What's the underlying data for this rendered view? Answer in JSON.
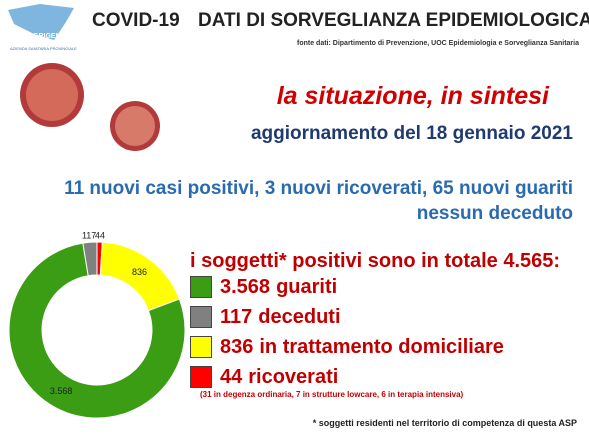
{
  "logo": {
    "name": "ASP AGRIGENTO",
    "subtitle": "AZIENDA SANITARIA PROVINCIALE"
  },
  "header": {
    "title_left": "COVID-19",
    "title_right": "DATI DI SORVEGLIANZA EPIDEMIOLOGICA",
    "source": "fonte dati: Dipartimento di Prevenzione, UOC Epidemiologia e Sorveglianza Sanitaria"
  },
  "headline": "la situazione, in sintesi",
  "update": "aggiornamento del 18 gennaio 2021",
  "summary": [
    "11 nuovi casi positivi, 3 nuovi ricoverati, 65 nuovi guariti",
    "nessun deceduto"
  ],
  "total": "i soggetti* positivi sono in totale 4.565:",
  "note": "(31 in degenza ordinaria, 7 in strutture lowcare, 6 in terapia intensiva)",
  "footnote": "* soggetti residenti nel territorio di competenza di questa ASP",
  "chart_data": {
    "type": "donut",
    "categories": [
      "guariti",
      "deceduti",
      "in trattamento domiciliare",
      "ricoverati"
    ],
    "values": [
      3568,
      117,
      836,
      44
    ],
    "value_labels": [
      "3.568",
      "117",
      "836",
      "44"
    ],
    "colors": [
      "#3a9d14",
      "#808080",
      "#ffff00",
      "#ff0000"
    ]
  }
}
